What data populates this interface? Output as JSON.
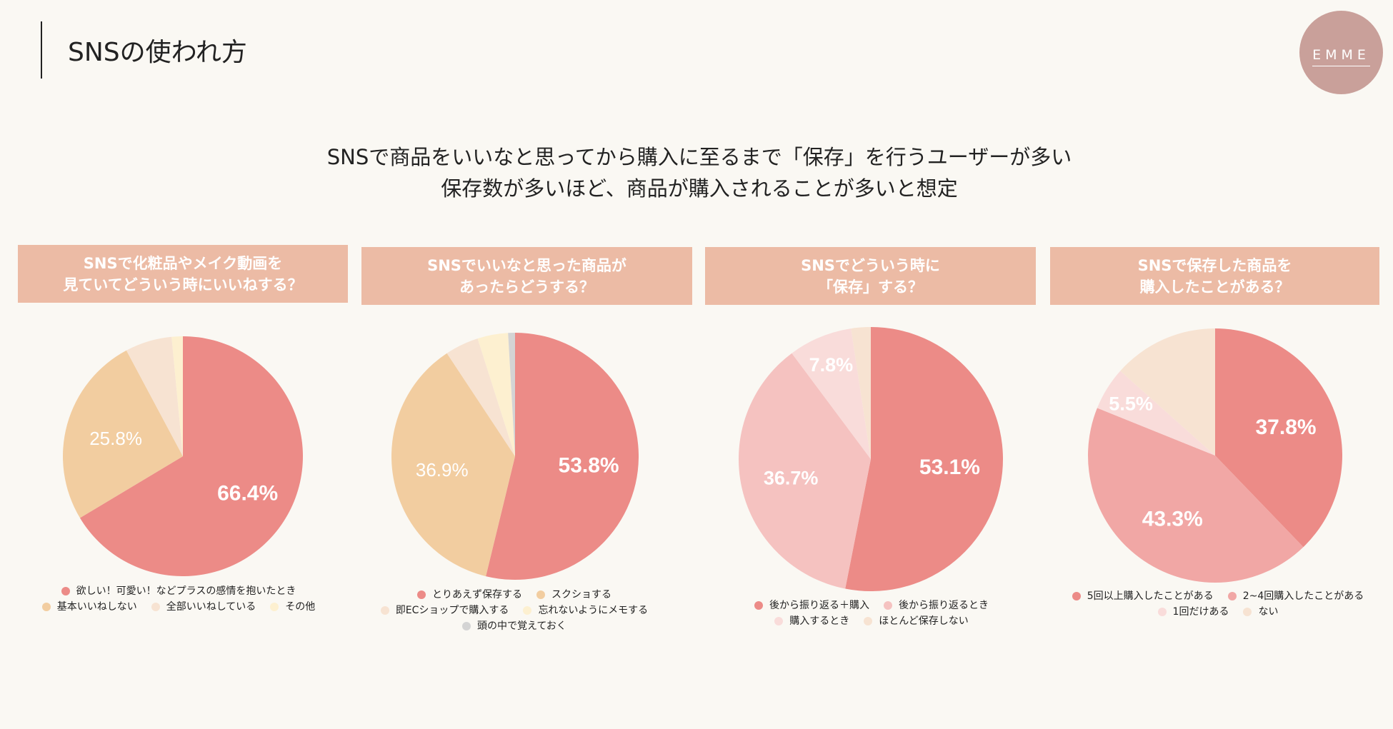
{
  "header": {
    "title": "SNSの使われ方",
    "logo": "EMME"
  },
  "headline": [
    "SNSで商品をいいなと思ってから購入に至るまで「保存」を行うユーザーが多い",
    "保存数が多いほど、商品が購入されることが多いと想定"
  ],
  "chart_data": [
    {
      "type": "pie",
      "title": "SNSで化粧品やメイク動画を\n見ていてどういう時にいいねする？",
      "labels": [
        "欲しい！可愛い！などプラスの感情を抱いたとき",
        "基本いいねしない",
        "全部いいねしている",
        "その他"
      ],
      "values": [
        66.4,
        25.8,
        6.3,
        1.5
      ],
      "data_labels": [
        "66.4%",
        "25.8%",
        "",
        ""
      ],
      "colors": [
        "#ec8b87",
        "#f2cda0",
        "#f7e3d2",
        "#fdf0d0"
      ]
    },
    {
      "type": "pie",
      "title": "SNSでいいなと思った商品が\nあったらどうする？",
      "labels": [
        "とりあえず保存する",
        "スクショする",
        "即ECショップで購入する",
        "忘れないようにメモする",
        "頭の中で覚えておく"
      ],
      "values": [
        53.8,
        36.9,
        4.4,
        4.0,
        0.9
      ],
      "data_labels": [
        "53.8%",
        "36.9%",
        "",
        "",
        ""
      ],
      "colors": [
        "#ec8b87",
        "#f2cda0",
        "#f7e3d2",
        "#fdf0d0",
        "#d4d4d4"
      ]
    },
    {
      "type": "pie",
      "title": "SNSでどういう時に\n「保存」する？",
      "labels": [
        "後から振り返る＋購入",
        "後から振り返るとき",
        "購入するとき",
        "ほとんど保存しない"
      ],
      "values": [
        53.1,
        36.7,
        7.8,
        2.4
      ],
      "data_labels": [
        "53.1%",
        "36.7%",
        "7.8%",
        ""
      ],
      "colors": [
        "#ec8b87",
        "#f5c2c0",
        "#f9dcda",
        "#f7e3d2"
      ]
    },
    {
      "type": "pie",
      "title": "SNSで保存した商品を\n購入したことがある？",
      "labels": [
        "5回以上購入したことがある",
        "2~4回購入したことがある",
        "1回だけある",
        "ない"
      ],
      "values": [
        37.8,
        43.3,
        5.5,
        13.4
      ],
      "data_labels": [
        "37.8%",
        "43.3%",
        "5.5%",
        ""
      ],
      "colors": [
        "#ec8b87",
        "#f1a7a5",
        "#f9dcda",
        "#f7e3d2"
      ]
    }
  ]
}
